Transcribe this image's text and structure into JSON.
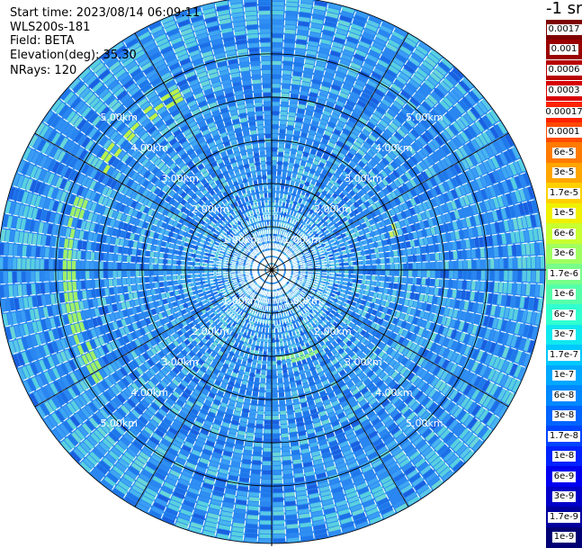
{
  "header": {
    "start_time": "Start time: 2023/08/14 06:09:11",
    "instrument": "WLS200s-181",
    "field": "Field: BETA",
    "elevation": "Elevation(deg): 35.30",
    "nrays": "NRays: 120"
  },
  "colorbar": {
    "unit": "-1 sr",
    "upper_labels": [
      "0.0017",
      "0.001",
      "0.0006",
      "0.0003"
    ],
    "upper_colors": [
      "#7f0000",
      "#9a0000",
      "#b80000",
      "#d80000"
    ],
    "lower_labels": [
      "0.00017",
      "0.0001",
      "6e-5",
      "3e-5",
      "1.7e-5",
      "1e-5",
      "6e-6",
      "3e-6",
      "1.7e-6",
      "1e-6",
      "6e-7",
      "3e-7",
      "1.7e-7",
      "1e-7",
      "6e-8",
      "3e-8",
      "1.7e-8",
      "1e-8",
      "6e-9",
      "3e-9",
      "1.7e-9",
      "1e-9"
    ],
    "lower_colors": [
      "#ff2200",
      "#ff4a00",
      "#ff7a00",
      "#ffa500",
      "#ffd000",
      "#f0f000",
      "#c8ff30",
      "#a0ff60",
      "#78ff8a",
      "#55ffaa",
      "#30ffd0",
      "#10e8ef",
      "#00c8ff",
      "#00a8ff",
      "#0088ff",
      "#0064ff",
      "#0044ff",
      "#0022ff",
      "#0000f0",
      "#0000c8",
      "#00009e",
      "#000074"
    ]
  },
  "chart_data": {
    "type": "ppi",
    "rays": 120,
    "max_range_km": 6.0,
    "range_ring_labels": [
      "1.00km",
      "2.00km",
      "3.00km",
      "4.00km",
      "5.00km"
    ],
    "range_rings_km": [
      1,
      2,
      3,
      4,
      5
    ]
  }
}
